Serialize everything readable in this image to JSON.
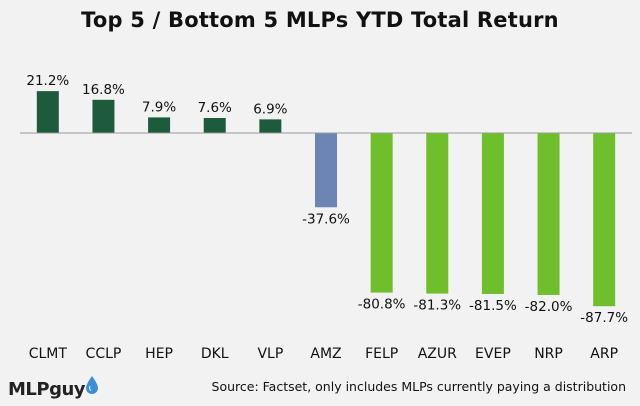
{
  "chart_data": {
    "type": "bar",
    "title": "Top 5 / Bottom 5 MLPs YTD Total Return",
    "categories": [
      "CLMT",
      "CCLP",
      "HEP",
      "DKL",
      "VLP",
      "AMZ",
      "FELP",
      "AZUR",
      "EVEP",
      "NRP",
      "ARP"
    ],
    "values": [
      21.2,
      16.8,
      7.9,
      7.6,
      6.9,
      -37.6,
      -80.8,
      -81.3,
      -81.5,
      -82.0,
      -87.7
    ],
    "value_labels": [
      "21.2%",
      "16.8%",
      "7.9%",
      "7.6%",
      "6.9%",
      "-37.6%",
      "-80.8%",
      "-81.3%",
      "-81.5%",
      "-82.0%",
      "-87.7%"
    ],
    "bar_colors": [
      "#1e5b3c",
      "#1e5b3c",
      "#1e5b3c",
      "#1e5b3c",
      "#1e5b3c",
      "#6d85b5",
      "#6fbe2b",
      "#6fbe2b",
      "#6fbe2b",
      "#6fbe2b",
      "#6fbe2b"
    ],
    "ylim": [
      -100,
      30
    ],
    "grid": false,
    "xlabel": "",
    "ylabel": ""
  },
  "footer": {
    "source": "Source: Factset, only includes MLPs currently paying a distribution"
  },
  "brand": {
    "name": "MLPguy",
    "drop_color": "#3a8fd6"
  }
}
